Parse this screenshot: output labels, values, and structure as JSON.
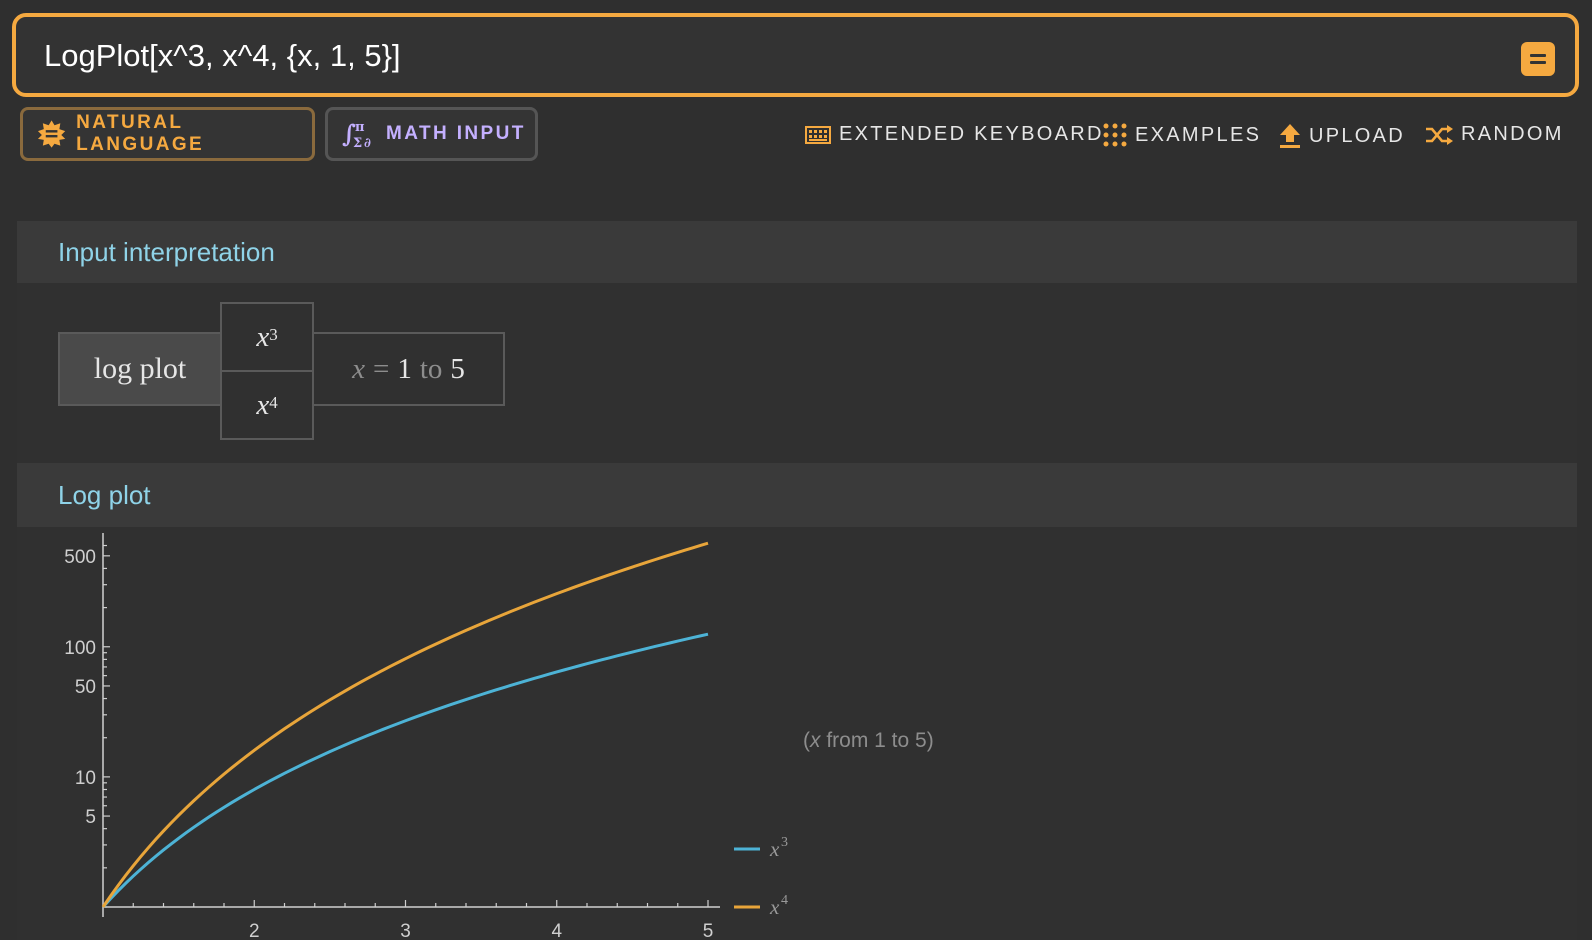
{
  "search": {
    "value": "LogPlot[x^3, x^4, {x, 1, 5}]"
  },
  "modes": {
    "natural_language": "NATURAL LANGUAGE",
    "math_input": "MATH INPUT"
  },
  "toolbar": {
    "extended_keyboard": "EXTENDED KEYBOARD",
    "examples": "EXAMPLES",
    "upload": "UPLOAD",
    "random": "RANDOM"
  },
  "pods": {
    "interpretation": {
      "title": "Input interpretation",
      "function": "log plot",
      "f1_base": "x",
      "f1_exp": "3",
      "f2_base": "x",
      "f2_exp": "4",
      "range_var": "x",
      "range_eq": "=",
      "range_from": "1",
      "range_to_word": "to",
      "range_to": "5"
    },
    "log_plot": {
      "title": "Log plot",
      "range_note_open": "(",
      "range_note_var": "x",
      "range_note_rest": " from 1 to 5)"
    }
  },
  "colors": {
    "accent": "#f5a940",
    "series1": "#4db3d6",
    "series2": "#e8a53a",
    "pod_title": "#8fd3e8"
  },
  "chart_data": {
    "type": "line",
    "x_range": [
      1,
      5
    ],
    "y_scale": "log",
    "ylim": [
      1,
      650
    ],
    "xticks": [
      2,
      3,
      4,
      5
    ],
    "yticks": [
      5,
      10,
      50,
      100,
      500
    ],
    "series": [
      {
        "name_base": "x",
        "name_exp": "3",
        "x": [
          1,
          1.5,
          2,
          2.5,
          3,
          3.5,
          4,
          4.5,
          5
        ],
        "y": [
          1,
          3.375,
          8,
          15.625,
          27,
          42.875,
          64,
          91.125,
          125
        ]
      },
      {
        "name_base": "x",
        "name_exp": "4",
        "x": [
          1,
          1.5,
          2,
          2.5,
          3,
          3.5,
          4,
          4.5,
          5
        ],
        "y": [
          1,
          5.0625,
          16,
          39.0625,
          81,
          150.0625,
          256,
          410.0625,
          625
        ]
      }
    ]
  }
}
